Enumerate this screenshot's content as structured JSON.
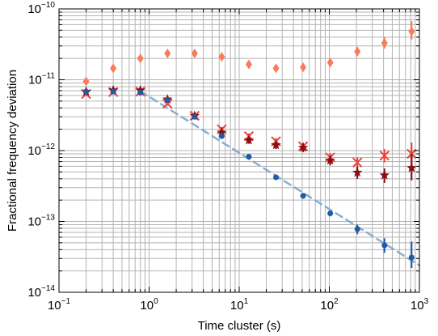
{
  "chart_data": {
    "type": "scatter",
    "xlabel": "Time cluster (s)",
    "ylabel": "Fractional frequency deviation",
    "xscale": "log",
    "yscale": "log",
    "xlim": [
      0.1,
      1000
    ],
    "ylim": [
      1e-14,
      1e-10
    ],
    "grid": true,
    "legend": "none",
    "x_ticks": [
      {
        "value": 0.1,
        "base": "10",
        "exp": "−1"
      },
      {
        "value": 1,
        "base": "10",
        "exp": "0"
      },
      {
        "value": 10,
        "base": "10",
        "exp": "1"
      },
      {
        "value": 100,
        "base": "10",
        "exp": "2"
      },
      {
        "value": 1000,
        "base": "10",
        "exp": "3"
      }
    ],
    "y_ticks": [
      {
        "value": 1e-14,
        "base": "10",
        "exp": "−14"
      },
      {
        "value": 1e-13,
        "base": "10",
        "exp": "−13"
      },
      {
        "value": 1e-12,
        "base": "10",
        "exp": "−12"
      },
      {
        "value": 1e-11,
        "base": "10",
        "exp": "−11"
      },
      {
        "value": 1e-10,
        "base": "10",
        "exp": "−10"
      }
    ],
    "series": [
      {
        "marker": "diamond",
        "color": "#fa7a5a",
        "x": [
          0.2,
          0.4,
          0.8,
          1.6,
          3.2,
          6.4,
          12.8,
          25.6,
          51.2,
          102.4,
          204.8,
          409.6,
          819.2
        ],
        "y": [
          9.5e-12,
          1.45e-11,
          2e-11,
          2.35e-11,
          2.35e-11,
          2.1e-11,
          1.65e-11,
          1.45e-11,
          1.5e-11,
          1.75e-11,
          2.5e-11,
          3.3e-11,
          4.8e-11
        ],
        "yerr_low": [
          8.8e-12,
          1.35e-11,
          1.88e-11,
          2.2e-11,
          2.2e-11,
          1.95e-11,
          1.52e-11,
          1.32e-11,
          1.35e-11,
          1.55e-11,
          2.15e-11,
          2.75e-11,
          3.7e-11
        ],
        "yerr_high": [
          1.02e-11,
          1.55e-11,
          2.12e-11,
          2.5e-11,
          2.5e-11,
          2.25e-11,
          1.78e-11,
          1.6e-11,
          1.65e-11,
          1.95e-11,
          2.9e-11,
          4e-11,
          6.7e-11
        ]
      },
      {
        "marker": "x",
        "color": "#e8443a",
        "x": [
          0.2,
          0.4,
          0.8,
          1.6,
          3.2,
          6.4,
          12.8,
          25.6,
          51.2,
          102.4,
          204.8,
          409.6,
          819.2
        ],
        "y": [
          6.3e-12,
          6.7e-12,
          6.8e-12,
          4.6e-12,
          3.1e-12,
          2e-12,
          1.6e-12,
          1.35e-12,
          1.15e-12,
          8e-13,
          6.8e-13,
          8.5e-13,
          9e-13
        ],
        "yerr_low": [
          5.9e-12,
          6.3e-12,
          6.4e-12,
          4.3e-12,
          2.9e-12,
          1.85e-12,
          1.45e-12,
          1.2e-12,
          1e-12,
          6.9e-13,
          5.8e-13,
          6.8e-13,
          6.3e-13
        ],
        "yerr_high": [
          6.7e-12,
          7.1e-12,
          7.2e-12,
          4.9e-12,
          3.3e-12,
          2.15e-12,
          1.75e-12,
          1.5e-12,
          1.3e-12,
          9.2e-13,
          8e-13,
          1.05e-12,
          1.3e-12
        ]
      },
      {
        "marker": "star",
        "color": "#8b0e14",
        "x": [
          0.2,
          0.4,
          0.8,
          1.6,
          3.2,
          6.4,
          12.8,
          25.6,
          51.2,
          102.4,
          204.8,
          409.6,
          819.2
        ],
        "y": [
          6.8e-12,
          7.1e-12,
          7.1e-12,
          5.3e-12,
          3.1e-12,
          1.8e-12,
          1.4e-12,
          1.2e-12,
          1.1e-12,
          7.3e-13,
          4.9e-13,
          4.5e-13,
          5.7e-13
        ],
        "yerr_low": [
          6.4e-12,
          6.7e-12,
          6.7e-12,
          5e-12,
          2.9e-12,
          1.65e-12,
          1.25e-12,
          1.05e-12,
          9.5e-13,
          6.2e-13,
          4e-13,
          3.5e-13,
          3.8e-13
        ],
        "yerr_high": [
          7.2e-12,
          7.5e-12,
          7.5e-12,
          5.6e-12,
          3.3e-12,
          1.95e-12,
          1.55e-12,
          1.35e-12,
          1.25e-12,
          8.4e-13,
          5.9e-13,
          5.6e-13,
          9e-13
        ]
      },
      {
        "marker": "circle",
        "color": "#1f5aa6",
        "x": [
          0.2,
          0.4,
          0.8,
          1.6,
          3.2,
          6.4,
          12.8,
          25.6,
          51.2,
          102.4,
          204.8,
          409.6,
          819.2
        ],
        "y": [
          6.8e-12,
          6.8e-12,
          6.6e-12,
          5.2e-12,
          3e-12,
          1.6e-12,
          8.2e-13,
          4.2e-13,
          2.3e-13,
          1.3e-13,
          7.8e-14,
          4.6e-14,
          3.1e-14
        ],
        "yerr_low": [
          6.5e-12,
          6.5e-12,
          6.3e-12,
          4.9e-12,
          2.8e-12,
          1.5e-12,
          7.6e-13,
          3.9e-13,
          2.1e-13,
          1.18e-13,
          6.6e-14,
          3.6e-14,
          2.2e-14
        ],
        "yerr_high": [
          7.1e-12,
          7.1e-12,
          6.9e-12,
          5.5e-12,
          3.2e-12,
          1.7e-12,
          8.8e-13,
          4.5e-13,
          2.5e-13,
          1.42e-13,
          9e-14,
          5.8e-14,
          5.2e-14
        ]
      }
    ],
    "fit_line": {
      "style": "dashed",
      "color": "#7fa6cc",
      "x": [
        0.8,
        1000
      ],
      "y": [
        6.9e-12,
        2.4e-14
      ]
    }
  }
}
